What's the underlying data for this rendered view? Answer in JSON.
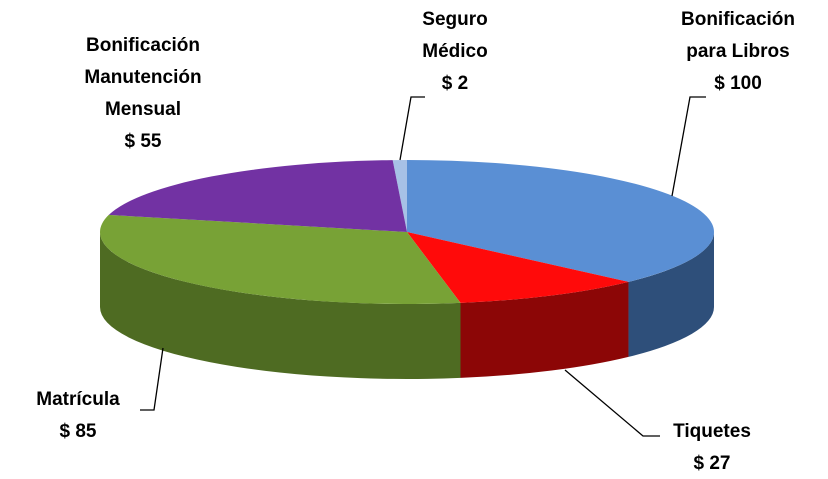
{
  "chart_data": {
    "type": "pie3d",
    "categories": [
      "Seguro\nMédico",
      "Bonificación\npara Libros",
      "Tiquetes",
      "Matrícula",
      "Bonificación\nManutención\nMensual"
    ],
    "values": [
      2,
      100,
      27,
      85,
      55
    ],
    "value_labels": [
      "$ 2",
      "$ 100",
      "$ 27",
      "$ 85",
      "$ 55"
    ],
    "colors": [
      "#a7c1e6",
      "#5a8fd4",
      "#ff0a0a",
      "#78a236",
      "#7232a3"
    ],
    "side_colors": [
      "#6f8fb8",
      "#2e4f7a",
      "#8c0606",
      "#4e6b22",
      "#4b1f6d"
    ]
  }
}
